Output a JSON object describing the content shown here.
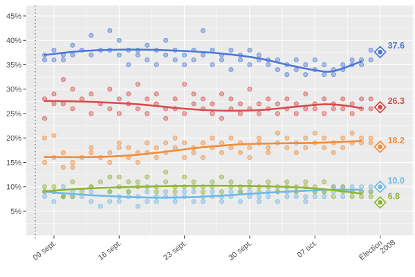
{
  "figure": {
    "panel_bg": "#ebebeb",
    "grid_major_color": "#ffffff",
    "grid_minor_color": "#ffffff",
    "axis_text_color": "#4d4d4d",
    "tick_mark_color": "#333333",
    "campaign_line_color": "#666666"
  },
  "chart_data": {
    "type": "scatter",
    "title": "",
    "xlabel": "",
    "ylabel": "",
    "grid": true,
    "legend": "none",
    "x_axis": {
      "ticks": [
        {
          "day": 1,
          "label": "09 sept."
        },
        {
          "day": 8,
          "label": "16 sept."
        },
        {
          "day": 15,
          "label": "23 sept."
        },
        {
          "day": 22,
          "label": "30 sept."
        },
        {
          "day": 29,
          "label": "07 oct."
        },
        {
          "day": 36,
          "label": "Élection\n2008"
        }
      ],
      "minor_days": [
        4.5,
        11.5,
        18.5,
        25.5,
        32.5,
        39.5
      ]
    },
    "y_axis": {
      "unit": "%",
      "ticks": [
        5,
        10,
        15,
        20,
        25,
        30,
        35,
        40,
        45
      ],
      "minor_ticks": [
        2.5,
        7.5,
        12.5,
        17.5,
        22.5,
        27.5,
        32.5,
        37.5,
        42.5
      ],
      "range": [
        0,
        47
      ]
    },
    "campaign_start_line_day": -1,
    "election_day": 36,
    "series": [
      {
        "id": "blue",
        "color": "#4a78d8",
        "result_label": "37.6",
        "result_value": 37.6,
        "trend": [
          [
            0,
            37.0
          ],
          [
            4,
            37.8
          ],
          [
            9,
            38.1
          ],
          [
            14,
            37.9
          ],
          [
            19,
            37.3
          ],
          [
            23,
            36.3
          ],
          [
            26,
            35.0
          ],
          [
            29,
            33.9
          ],
          [
            31,
            33.7
          ],
          [
            34,
            35.7
          ]
        ]
      },
      {
        "id": "red",
        "color": "#d94a4a",
        "result_label": "26.3",
        "result_value": 26.3,
        "trend": [
          [
            0,
            27.6
          ],
          [
            5,
            27.4
          ],
          [
            10,
            26.9
          ],
          [
            15,
            26.0
          ],
          [
            19,
            25.6
          ],
          [
            23,
            25.7
          ],
          [
            27,
            26.4
          ],
          [
            30,
            26.9
          ],
          [
            32,
            26.7
          ],
          [
            34,
            26.1
          ]
        ]
      },
      {
        "id": "orange",
        "color": "#ef8c3a",
        "result_label": "18.2",
        "result_value": 18.2,
        "trend": [
          [
            0,
            16.1
          ],
          [
            5,
            16.1
          ],
          [
            9,
            16.4
          ],
          [
            13,
            17.2
          ],
          [
            17,
            18.1
          ],
          [
            21,
            18.7
          ],
          [
            25,
            18.9
          ],
          [
            29,
            19.0
          ],
          [
            32,
            19.2
          ],
          [
            34,
            19.4
          ]
        ]
      },
      {
        "id": "light-blue",
        "color": "#6fb8e8",
        "result_label": "10.0",
        "result_value": 10.0,
        "trend": [
          [
            0,
            9.0
          ],
          [
            4,
            8.4
          ],
          [
            8,
            8.0
          ],
          [
            12,
            7.8
          ],
          [
            16,
            7.9
          ],
          [
            20,
            8.3
          ],
          [
            24,
            8.8
          ],
          [
            28,
            9.2
          ],
          [
            31,
            9.4
          ],
          [
            34,
            9.4
          ]
        ]
      },
      {
        "id": "green",
        "color": "#8eb433",
        "result_label": "6.8",
        "result_value": 6.8,
        "trend": [
          [
            0,
            9.1
          ],
          [
            4,
            9.6
          ],
          [
            8,
            9.9
          ],
          [
            12,
            10.1
          ],
          [
            16,
            10.2
          ],
          [
            20,
            10.2
          ],
          [
            24,
            10.1
          ],
          [
            28,
            9.8
          ],
          [
            31,
            9.3
          ],
          [
            34,
            8.6
          ]
        ]
      }
    ],
    "polls": {
      "columns": [
        "day",
        "blue",
        "red",
        "orange",
        "light-blue",
        "green"
      ],
      "rows": [
        [
          0,
          37,
          28,
          15,
          9,
          9
        ],
        [
          0,
          36,
          24,
          20,
          8,
          10
        ],
        [
          1,
          38,
          29,
          16,
          7,
          9
        ],
        [
          1,
          36,
          27,
          20.5,
          9,
          10
        ],
        [
          2,
          36,
          32,
          14,
          8,
          8
        ],
        [
          2,
          37,
          27,
          17,
          10,
          8
        ],
        [
          3,
          39,
          26,
          15,
          8,
          11
        ],
        [
          3,
          37,
          30,
          14,
          9,
          8
        ],
        [
          4,
          38,
          28,
          16,
          8,
          9
        ],
        [
          5,
          41,
          25,
          17,
          7,
          10
        ],
        [
          5,
          37,
          29,
          18,
          9,
          10
        ],
        [
          6,
          38,
          27,
          16,
          6,
          11
        ],
        [
          7,
          42,
          26,
          15,
          7,
          9
        ],
        [
          7,
          38,
          30,
          17,
          9,
          12
        ],
        [
          8,
          40,
          28,
          18,
          8,
          12
        ],
        [
          8,
          37,
          25,
          19,
          7,
          10
        ],
        [
          9,
          38,
          29,
          16,
          9,
          11
        ],
        [
          9,
          35,
          27,
          18,
          8,
          9
        ],
        [
          10,
          38,
          26,
          17,
          8,
          10
        ],
        [
          10,
          37,
          31,
          15,
          6,
          11
        ],
        [
          11,
          36,
          28,
          19,
          7,
          10
        ],
        [
          11,
          39,
          25,
          17,
          9,
          12
        ],
        [
          12,
          38,
          27,
          18,
          8,
          10
        ],
        [
          12,
          35,
          29,
          16,
          7,
          9
        ],
        [
          13,
          37,
          26,
          19,
          9,
          11
        ],
        [
          13,
          40,
          24,
          17,
          8,
          13
        ],
        [
          14,
          38,
          28,
          18,
          7,
          10
        ],
        [
          14,
          36,
          26,
          20,
          8,
          9
        ],
        [
          15,
          37,
          31,
          16,
          9,
          10
        ],
        [
          15,
          35,
          25,
          19,
          8,
          12
        ],
        [
          16,
          38,
          27,
          17,
          7,
          11
        ],
        [
          16,
          36,
          29,
          18,
          9,
          10
        ],
        [
          17,
          42,
          26,
          19,
          8,
          9
        ],
        [
          17,
          37,
          28,
          16,
          7,
          10
        ],
        [
          18,
          35,
          25,
          20,
          9,
          11
        ],
        [
          18,
          38,
          27,
          18,
          8,
          10
        ],
        [
          19,
          36,
          29,
          17,
          7,
          9
        ],
        [
          19,
          37,
          24,
          19,
          8,
          12
        ],
        [
          20,
          38,
          26,
          18,
          9,
          10
        ],
        [
          20,
          34,
          28,
          20,
          8,
          11
        ],
        [
          21,
          37,
          25,
          17,
          7,
          10
        ],
        [
          21,
          36,
          27,
          19,
          9,
          9
        ],
        [
          22,
          38,
          26,
          18,
          8,
          10
        ],
        [
          22,
          35,
          30,
          16,
          9,
          11
        ],
        [
          23,
          36,
          25,
          19,
          7,
          10
        ],
        [
          23,
          37,
          27,
          20,
          8,
          9
        ],
        [
          24,
          35,
          26,
          18,
          9,
          10
        ],
        [
          24,
          36,
          28,
          17,
          8,
          11
        ],
        [
          25,
          34,
          25,
          19,
          9,
          10
        ],
        [
          25,
          36,
          27,
          21,
          7,
          9
        ],
        [
          26,
          35,
          26,
          18,
          8,
          10
        ],
        [
          26,
          33,
          28,
          20,
          9,
          11
        ],
        [
          27,
          36,
          25,
          19,
          8,
          9
        ],
        [
          27,
          34,
          27,
          17,
          9,
          10
        ],
        [
          28,
          35,
          26,
          20,
          8,
          11
        ],
        [
          28,
          33,
          29,
          18,
          7,
          10
        ],
        [
          29,
          34,
          26,
          19,
          9,
          9
        ],
        [
          29,
          36,
          27,
          21,
          8,
          10
        ],
        [
          30,
          33,
          25,
          18,
          9,
          11
        ],
        [
          30,
          35,
          28,
          20,
          8,
          9
        ],
        [
          31,
          34,
          26,
          19,
          10,
          10
        ],
        [
          31,
          33,
          27,
          17,
          9,
          8
        ],
        [
          32,
          35,
          26,
          20,
          8,
          9
        ],
        [
          32,
          34,
          28,
          18,
          10,
          10
        ],
        [
          33,
          36,
          27,
          19,
          9,
          8
        ],
        [
          33,
          35,
          25,
          21,
          10,
          9
        ],
        [
          34,
          36,
          26,
          19,
          9,
          8
        ],
        [
          34,
          35,
          28,
          20,
          10,
          9
        ],
        [
          35,
          38,
          28,
          19,
          10,
          8
        ],
        [
          35,
          36,
          26,
          20,
          9,
          9
        ]
      ]
    }
  }
}
